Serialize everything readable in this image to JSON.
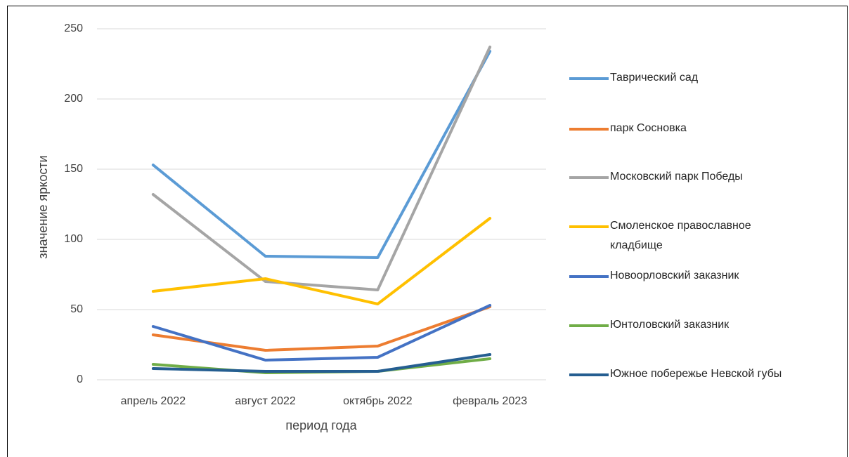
{
  "chart_data": {
    "type": "line",
    "y_label": "значение яркости",
    "x_label": "период года",
    "categories": [
      "апрель 2022",
      "август 2022",
      "октябрь 2022",
      "февраль 2023"
    ],
    "series": [
      {
        "name": "Таврический сад",
        "color": "#5b9bd5",
        "values": [
          153,
          88,
          87,
          234
        ]
      },
      {
        "name": "парк Сосновка",
        "color": "#ed7d31",
        "values": [
          32,
          21,
          24,
          52
        ]
      },
      {
        "name": "Московский парк Победы",
        "color": "#a5a5a5",
        "values": [
          132,
          70,
          64,
          237
        ]
      },
      {
        "name": "Смоленское православное кладбище",
        "color": "#ffc000",
        "values": [
          63,
          72,
          54,
          115
        ]
      },
      {
        "name": "Новоорловский заказник",
        "color": "#4472c4",
        "values": [
          38,
          14,
          16,
          53
        ]
      },
      {
        "name": "Юнтоловский  заказник",
        "color": "#70ad47",
        "values": [
          11,
          5,
          6,
          15
        ]
      },
      {
        "name": "Южное побережье Невской губы",
        "color": "#255e91",
        "values": [
          8,
          6,
          6,
          18
        ]
      }
    ],
    "ylim": [
      0,
      250
    ],
    "yticks": [
      0,
      50,
      100,
      150,
      200,
      250
    ],
    "grid": true,
    "legend": "right"
  }
}
